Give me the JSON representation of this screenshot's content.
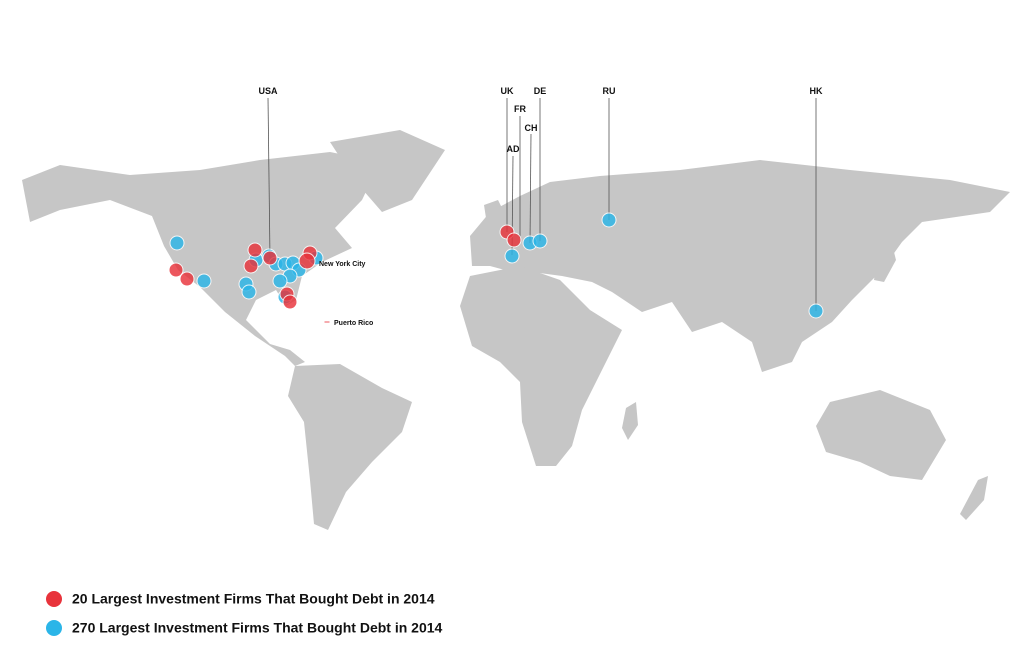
{
  "map_labels": {
    "countries": [
      "USA",
      "UK",
      "FR",
      "AD",
      "CH",
      "DE",
      "RU",
      "HK"
    ],
    "cities": [
      "New York City",
      "Puerto Rico"
    ]
  },
  "legend": [
    {
      "name": "20 Largest Investment Firms That Bought Debt in 2014",
      "color": "#e8333b"
    },
    {
      "name": "270 Largest Investment Firms That Bought Debt in 2014",
      "color": "#2bb5e8"
    }
  ]
}
